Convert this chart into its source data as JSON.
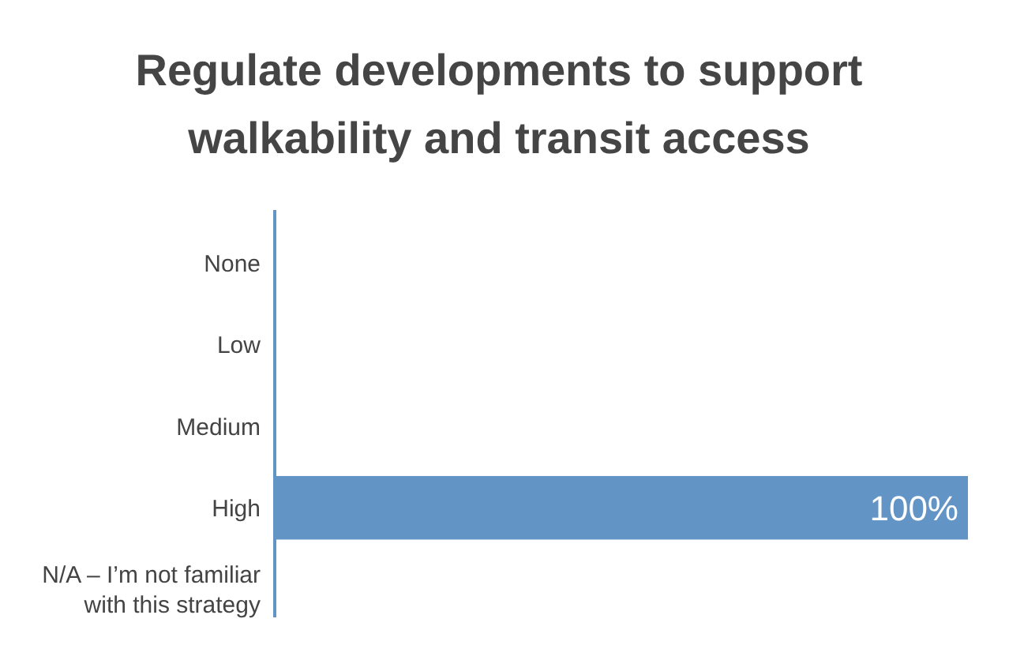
{
  "chart_data": {
    "type": "bar",
    "orientation": "horizontal",
    "title": "Regulate developments to support walkability and transit access",
    "categories": [
      "None",
      "Low",
      "Medium",
      "High",
      "N/A – I’m not familiar with this strategy"
    ],
    "values": [
      0,
      0,
      0,
      100,
      0
    ],
    "color": "#6394c6",
    "value_labels": [
      null,
      null,
      null,
      "100%",
      null
    ],
    "xlim": [
      0,
      100
    ],
    "tick_labels": "y"
  }
}
